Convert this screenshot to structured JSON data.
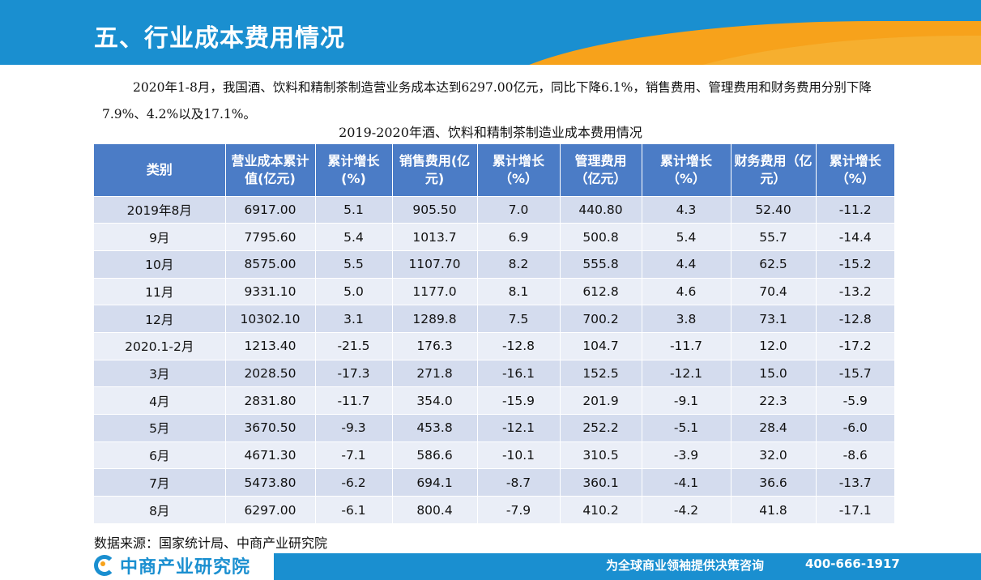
{
  "header": {
    "title": "五、行业成本费用情况"
  },
  "intro": "2020年1-8月，我国酒、饮料和精制茶制造营业务成本达到6297.00亿元，同比下降6.1%，销售费用、管理费用和财务费用分别下降7.9%、4.2%以及17.1%。",
  "table": {
    "title": "2019-2020年酒、饮料和精制茶制造业成本费用情况",
    "headers": [
      "类别",
      "营业成本累计值(亿元)",
      "累计增长(%)",
      "销售费用(亿元)",
      "累计增长（%）",
      "管理费用（亿元）",
      "累计增长（%）",
      "财务费用（亿元）",
      "累计增长（%）"
    ],
    "rows": [
      [
        "2019年8月",
        "6917.00",
        "5.1",
        "905.50",
        "7.0",
        "440.80",
        "4.3",
        "52.40",
        "-11.2"
      ],
      [
        "9月",
        "7795.60",
        "5.4",
        "1013.7",
        "6.9",
        "500.8",
        "5.4",
        "55.7",
        "-14.4"
      ],
      [
        "10月",
        "8575.00",
        "5.5",
        "1107.70",
        "8.2",
        "555.8",
        "4.4",
        "62.5",
        "-15.2"
      ],
      [
        "11月",
        "9331.10",
        "5.0",
        "1177.0",
        "8.1",
        "612.8",
        "4.6",
        "70.4",
        "-13.2"
      ],
      [
        "12月",
        "10302.10",
        "3.1",
        "1289.8",
        "7.5",
        "700.2",
        "3.8",
        "73.1",
        "-12.8"
      ],
      [
        "2020.1-2月",
        "1213.40",
        "-21.5",
        "176.3",
        "-12.8",
        "104.7",
        "-11.7",
        "12.0",
        "-17.2"
      ],
      [
        "3月",
        "2028.50",
        "-17.3",
        "271.8",
        "-16.1",
        "152.5",
        "-12.1",
        "15.0",
        "-15.7"
      ],
      [
        "4月",
        "2831.80",
        "-11.7",
        "354.0",
        "-15.9",
        "201.9",
        "-9.1",
        "22.3",
        "-5.9"
      ],
      [
        "5月",
        "3670.50",
        "-9.3",
        "453.8",
        "-12.1",
        "252.2",
        "-5.1",
        "28.4",
        "-6.0"
      ],
      [
        "6月",
        "4671.30",
        "-7.1",
        "586.6",
        "-10.1",
        "310.5",
        "-3.9",
        "32.0",
        "-8.6"
      ],
      [
        "7月",
        "5473.80",
        "-6.2",
        "694.1",
        "-8.7",
        "360.1",
        "-4.1",
        "36.6",
        "-13.7"
      ],
      [
        "8月",
        "6297.00",
        "-6.1",
        "800.4",
        "-7.9",
        "410.2",
        "-4.2",
        "41.8",
        "-17.1"
      ]
    ]
  },
  "source": "数据来源：国家统计局、中商产业研究院",
  "footer": {
    "logo_text": "中商产业研究院",
    "slogan": "为全球商业领袖提供决策咨询",
    "phone": "400-666-1917"
  },
  "colors": {
    "primary_blue": "#1a8fd0",
    "accent_orange": "#f7a21b",
    "table_header": "#4b7cc6",
    "row_dark": "#d4dcee",
    "row_light": "#eaeef7"
  }
}
